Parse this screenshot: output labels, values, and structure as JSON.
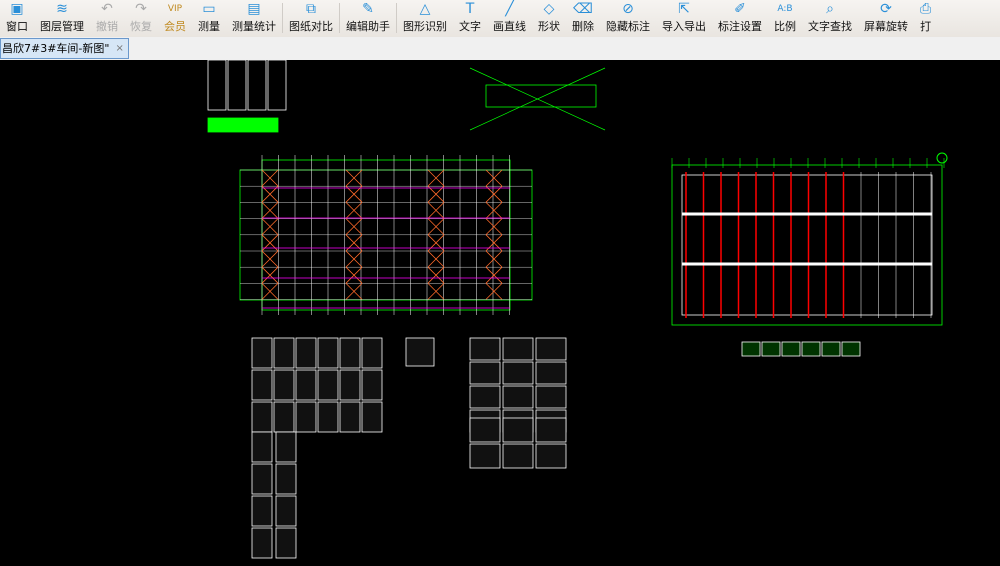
{
  "toolbar": {
    "items": [
      {
        "label": "窗口",
        "icon": "window-icon",
        "glyph": "▣",
        "state": "normal"
      },
      {
        "label": "图层管理",
        "icon": "layers-icon",
        "glyph": "≋",
        "state": "normal"
      },
      {
        "label": "撤销",
        "icon": "undo-icon",
        "glyph": "↶",
        "state": "disabled"
      },
      {
        "label": "恢复",
        "icon": "redo-icon",
        "glyph": "↷",
        "state": "disabled"
      },
      {
        "label": "会员",
        "icon": "vip-icon",
        "glyph": "VIP",
        "state": "vip"
      },
      {
        "label": "测量",
        "icon": "ruler-icon",
        "glyph": "▭",
        "state": "normal"
      },
      {
        "label": "测量统计",
        "icon": "measure-stats-icon",
        "glyph": "▤",
        "state": "normal"
      },
      {
        "label": "图纸对比",
        "icon": "compare-icon",
        "glyph": "⧉",
        "state": "normal"
      },
      {
        "label": "编辑助手",
        "icon": "edit-assistant-icon",
        "glyph": "✎",
        "state": "normal"
      },
      {
        "label": "图形识别",
        "icon": "shape-recognition-icon",
        "glyph": "△",
        "state": "normal"
      },
      {
        "label": "文字",
        "icon": "text-icon",
        "glyph": "T",
        "state": "normal"
      },
      {
        "label": "画直线",
        "icon": "line-icon",
        "glyph": "╱",
        "state": "normal"
      },
      {
        "label": "形状",
        "icon": "shape-icon",
        "glyph": "◇",
        "state": "normal"
      },
      {
        "label": "删除",
        "icon": "eraser-icon",
        "glyph": "⌫",
        "state": "normal"
      },
      {
        "label": "隐藏标注",
        "icon": "hide-annotation-icon",
        "glyph": "⊘",
        "state": "normal"
      },
      {
        "label": "导入导出",
        "icon": "import-export-icon",
        "glyph": "⇱",
        "state": "normal"
      },
      {
        "label": "标注设置",
        "icon": "annotation-settings-icon",
        "glyph": "✐",
        "state": "normal"
      },
      {
        "label": "比例",
        "icon": "scale-icon",
        "glyph": "A:B",
        "state": "normal"
      },
      {
        "label": "文字查找",
        "icon": "text-search-icon",
        "glyph": "⌕",
        "state": "normal"
      },
      {
        "label": "屏幕旋转",
        "icon": "rotate-screen-icon",
        "glyph": "⟳",
        "state": "normal"
      },
      {
        "label": "打",
        "icon": "print-icon",
        "glyph": "⎙",
        "state": "normal"
      }
    ],
    "separators_after": [
      6,
      7,
      8
    ]
  },
  "tab": {
    "title": "昌欣7#3#车间-新图\"",
    "close": "×"
  },
  "colors": {
    "green": "#00ff00",
    "red": "#ff0000",
    "magenta": "#ff00ff",
    "white": "#ffffff",
    "canvas": "#000000"
  }
}
